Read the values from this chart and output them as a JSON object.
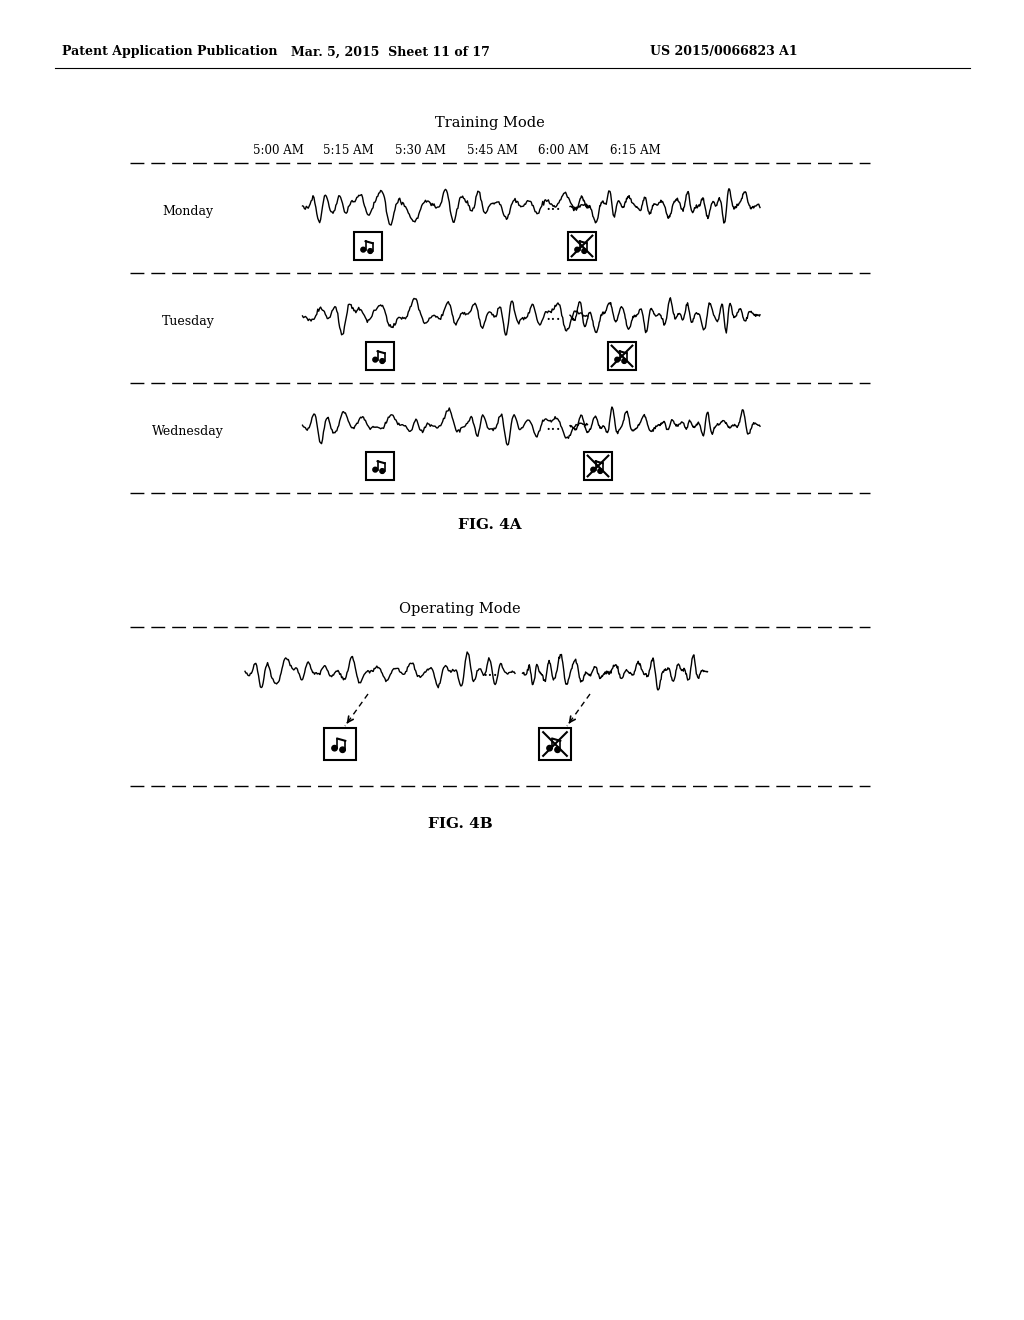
{
  "header_left": "Patent Application Publication",
  "header_mid": "Mar. 5, 2015  Sheet 11 of 17",
  "header_right": "US 2015/0066823 A1",
  "fig4a_title": "Training Mode",
  "fig4b_title": "Operating Mode",
  "time_labels": [
    "5:00 AM",
    "5:15 AM",
    "5:30 AM",
    "5:45 AM",
    "6:00 AM",
    "6:15 AM"
  ],
  "day_labels": [
    "Monday",
    "Tuesday",
    "Wednesday"
  ],
  "fig4a_label": "FIG. 4A",
  "fig4b_label": "FIG. 4B",
  "bg_color": "#ffffff",
  "text_color": "#000000"
}
